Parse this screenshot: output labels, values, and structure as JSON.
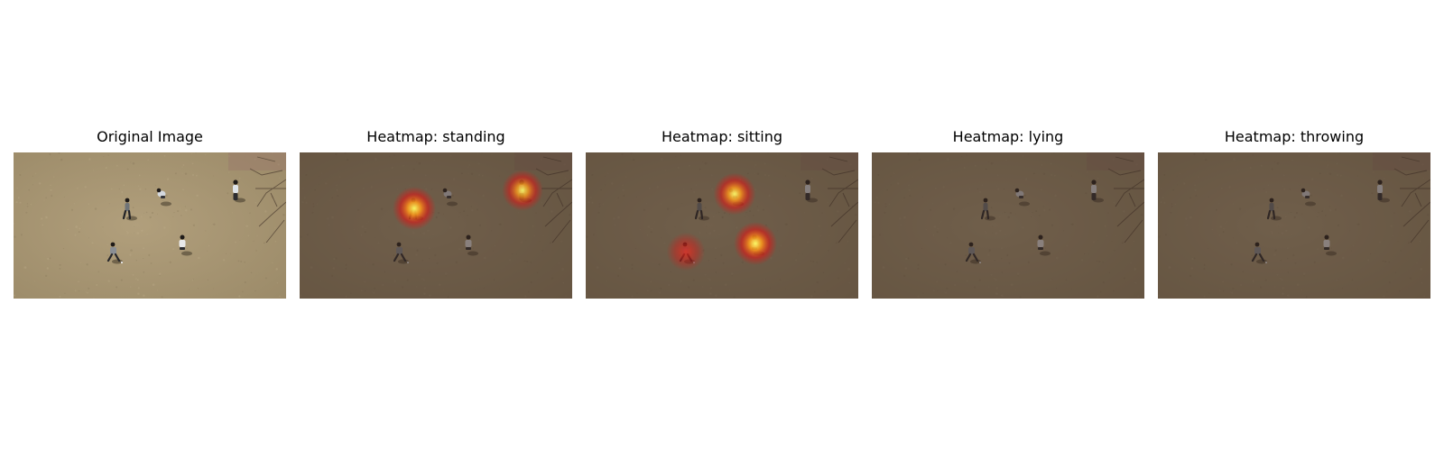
{
  "panels": [
    {
      "title": "Original Image",
      "variant": "original",
      "heat_spots": []
    },
    {
      "title": "Heatmap: standing",
      "variant": "heatmap",
      "heat_spots": [
        {
          "person": 1,
          "intensity": 1.0
        },
        {
          "person": 3,
          "intensity": 0.8
        }
      ]
    },
    {
      "title": "Heatmap: sitting",
      "variant": "heatmap",
      "heat_spots": [
        {
          "person": 2,
          "intensity": 0.9
        },
        {
          "person": 5,
          "intensity": 1.0
        },
        {
          "person": 4,
          "intensity": 0.55
        }
      ]
    },
    {
      "title": "Heatmap: lying",
      "variant": "heatmap",
      "heat_spots": []
    },
    {
      "title": "Heatmap: throwing",
      "variant": "heatmap",
      "heat_spots": []
    }
  ],
  "colors": {
    "ground": "#b19f7c",
    "ground_dark": "#9b8a68",
    "heatmap_overlay": "#3a2a22",
    "heat_core": "#ffff66",
    "heat_mid": "#ff9a1a",
    "heat_edge": "#e81010",
    "title_text": "#000000"
  }
}
